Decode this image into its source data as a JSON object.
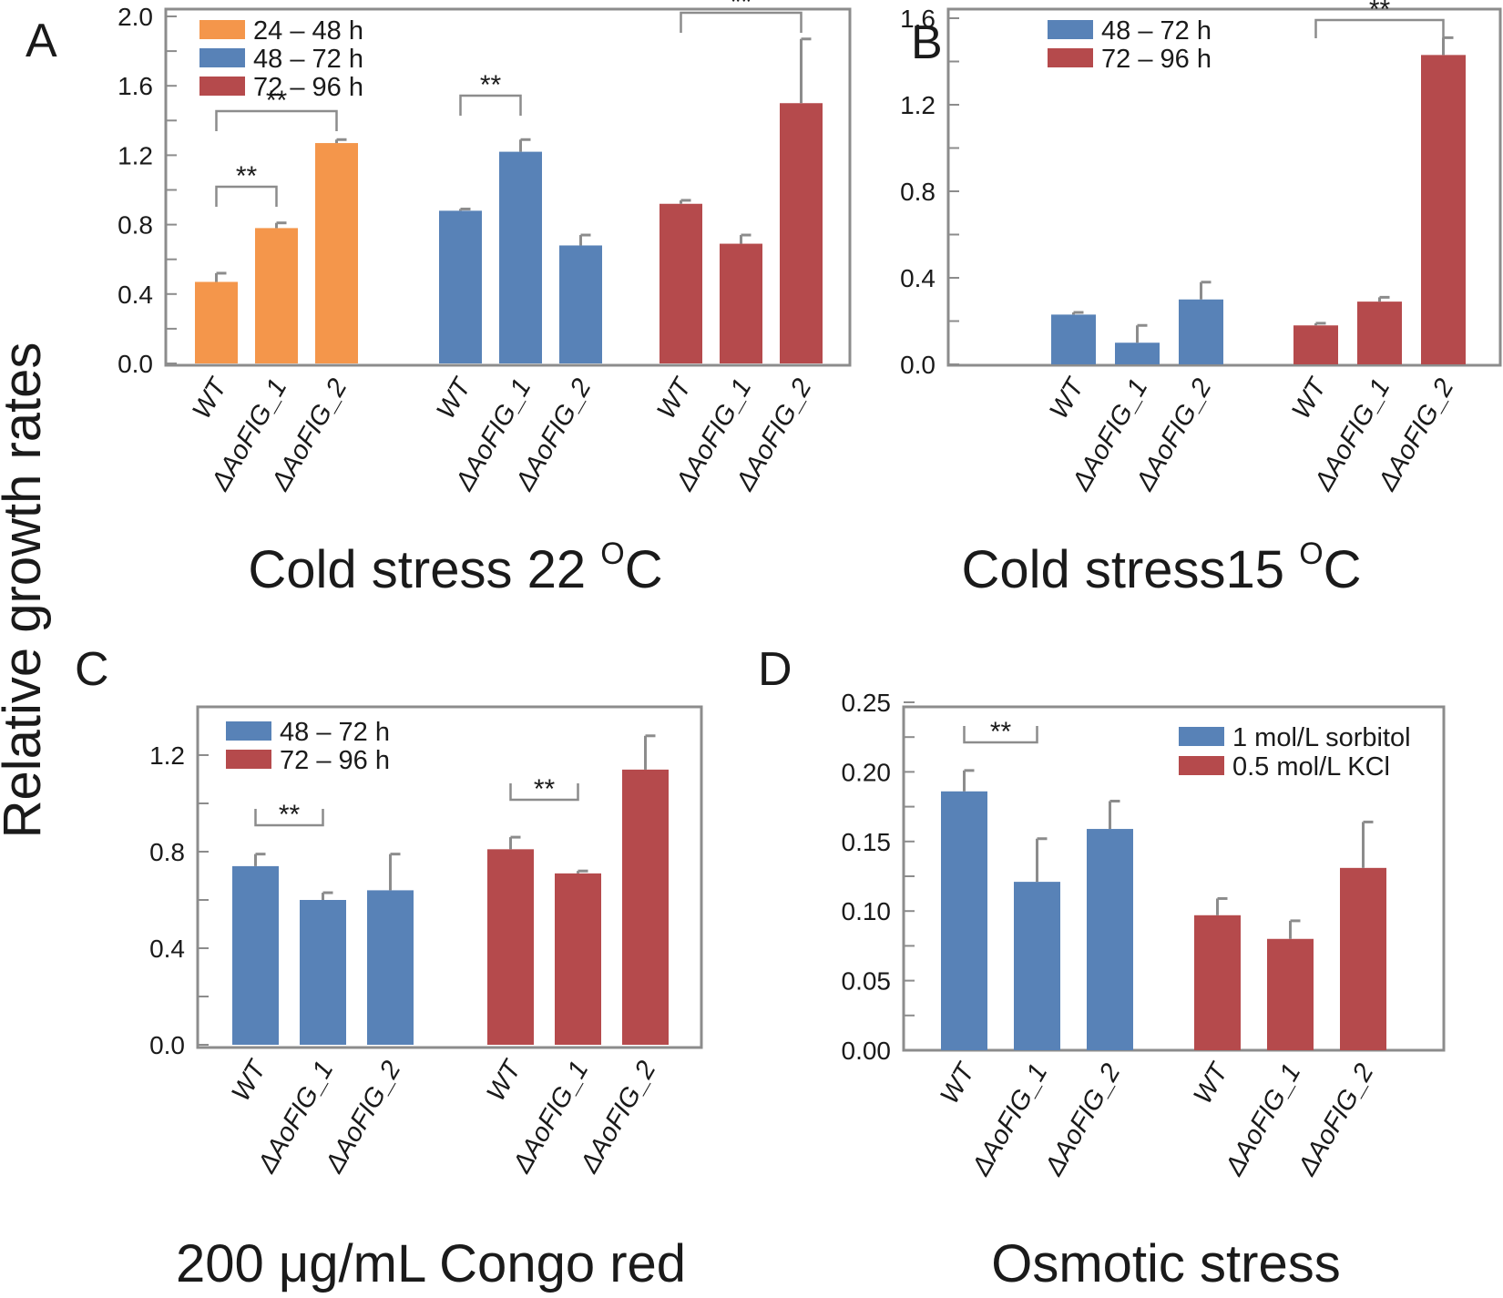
{
  "figure": {
    "ylabel": "Relative growth rates"
  },
  "colors": {
    "orange": "#F4964B",
    "blue": "#5882B7",
    "red": "#B54A4C"
  },
  "chart_data": [
    {
      "panel": "A",
      "type": "bar",
      "title": "Cold stress 22  °C",
      "title_main": "Cold stress 22",
      "title_unit": "C",
      "title_super": "O",
      "ylabel": "Relative growth rates",
      "ylim": [
        0,
        2.0
      ],
      "yticks": [
        "0.0",
        "0.4",
        "0.8",
        "1.2",
        "1.6",
        "2.0"
      ],
      "ytick_values": [
        0,
        0.4,
        0.8,
        1.2,
        1.6,
        2.0
      ],
      "categories": [
        "WT",
        "ΔAoFIG_1",
        "ΔAoFIG_2"
      ],
      "legend": [
        "24 – 48 h",
        "48 – 72 h",
        "72 – 96 h"
      ],
      "series": [
        {
          "name": "24 – 48 h",
          "color": "orange",
          "values": [
            0.47,
            0.78,
            1.27
          ],
          "errors": [
            0.05,
            0.03,
            0.02
          ]
        },
        {
          "name": "48 – 72 h",
          "color": "blue",
          "values": [
            0.88,
            1.22,
            0.68
          ],
          "errors": [
            0.01,
            0.07,
            0.06
          ]
        },
        {
          "name": "72 – 96 h",
          "color": "red",
          "values": [
            0.92,
            0.69,
            1.5
          ],
          "errors": [
            0.02,
            0.05,
            0.37
          ]
        }
      ],
      "significance": [
        {
          "series": 0,
          "from": 0,
          "to": 1,
          "label": "**"
        },
        {
          "series": 0,
          "from": 0,
          "to": 2,
          "label": "**"
        },
        {
          "series": 1,
          "from": 0,
          "to": 1,
          "label": "**"
        },
        {
          "series": 2,
          "from": 0,
          "to": 2,
          "label": "**"
        }
      ]
    },
    {
      "panel": "B",
      "type": "bar",
      "title": "Cold stress15  °C",
      "title_main": "Cold stress15",
      "title_unit": "C",
      "title_super": "O",
      "ylim": [
        0,
        1.6
      ],
      "yticks": [
        "0.0",
        "0.4",
        "0.8",
        "1.2",
        "1.6"
      ],
      "ytick_values": [
        0,
        0.4,
        0.8,
        1.2,
        1.6
      ],
      "categories": [
        "WT",
        "ΔAoFIG_1",
        "ΔAoFIG_2"
      ],
      "legend": [
        "48 – 72 h",
        "72 – 96 h"
      ],
      "series": [
        {
          "name": "48 – 72 h",
          "color": "blue",
          "values": [
            0.23,
            0.1,
            0.3
          ],
          "errors": [
            0.01,
            0.08,
            0.08
          ]
        },
        {
          "name": "72 – 96 h",
          "color": "red",
          "values": [
            0.18,
            0.29,
            1.43
          ],
          "errors": [
            0.01,
            0.02,
            0.08
          ]
        }
      ],
      "significance": [
        {
          "series": 1,
          "from": 0,
          "to": 2,
          "label": "**"
        }
      ]
    },
    {
      "panel": "C",
      "type": "bar",
      "title": "200 μg/mL Congo red",
      "ylim": [
        0,
        1.4
      ],
      "yticks": [
        "0.0",
        "0.4",
        "0.8",
        "1.2"
      ],
      "ytick_values": [
        0,
        0.4,
        0.8,
        1.2
      ],
      "categories": [
        "WT",
        "ΔAoFIG_1",
        "ΔAoFIG_2"
      ],
      "legend": [
        "48 – 72 h",
        "72 – 96 h"
      ],
      "series": [
        {
          "name": "48 – 72 h",
          "color": "blue",
          "values": [
            0.74,
            0.6,
            0.64
          ],
          "errors": [
            0.05,
            0.03,
            0.15
          ]
        },
        {
          "name": "72 – 96 h",
          "color": "red",
          "values": [
            0.81,
            0.71,
            1.14
          ],
          "errors": [
            0.05,
            0.01,
            0.14
          ]
        }
      ],
      "significance": [
        {
          "series": 0,
          "from": 0,
          "to": 1,
          "label": "**"
        },
        {
          "series": 1,
          "from": 0,
          "to": 1,
          "label": "**"
        }
      ]
    },
    {
      "panel": "D",
      "type": "bar",
      "title": "Osmotic stress",
      "ylim": [
        0,
        0.25
      ],
      "yticks": [
        "0.00",
        "0.05",
        "0.10",
        "0.15",
        "0.20",
        "0.25"
      ],
      "ytick_values": [
        0,
        0.05,
        0.1,
        0.15,
        0.2,
        0.25
      ],
      "categories": [
        "WT",
        "ΔAoFIG_1",
        "ΔAoFIG_2"
      ],
      "legend": [
        "1 mol/L sorbitol",
        "0.5 mol/L KCl"
      ],
      "series": [
        {
          "name": "1 mol/L sorbitol",
          "color": "blue",
          "values": [
            0.186,
            0.121,
            0.159
          ],
          "errors": [
            0.015,
            0.031,
            0.02
          ]
        },
        {
          "name": "0.5 mol/L KCl",
          "color": "red",
          "values": [
            0.097,
            0.08,
            0.131
          ],
          "errors": [
            0.012,
            0.013,
            0.033
          ]
        }
      ],
      "significance": [
        {
          "series": 0,
          "from": 0,
          "to": 1,
          "label": "**"
        }
      ]
    }
  ]
}
